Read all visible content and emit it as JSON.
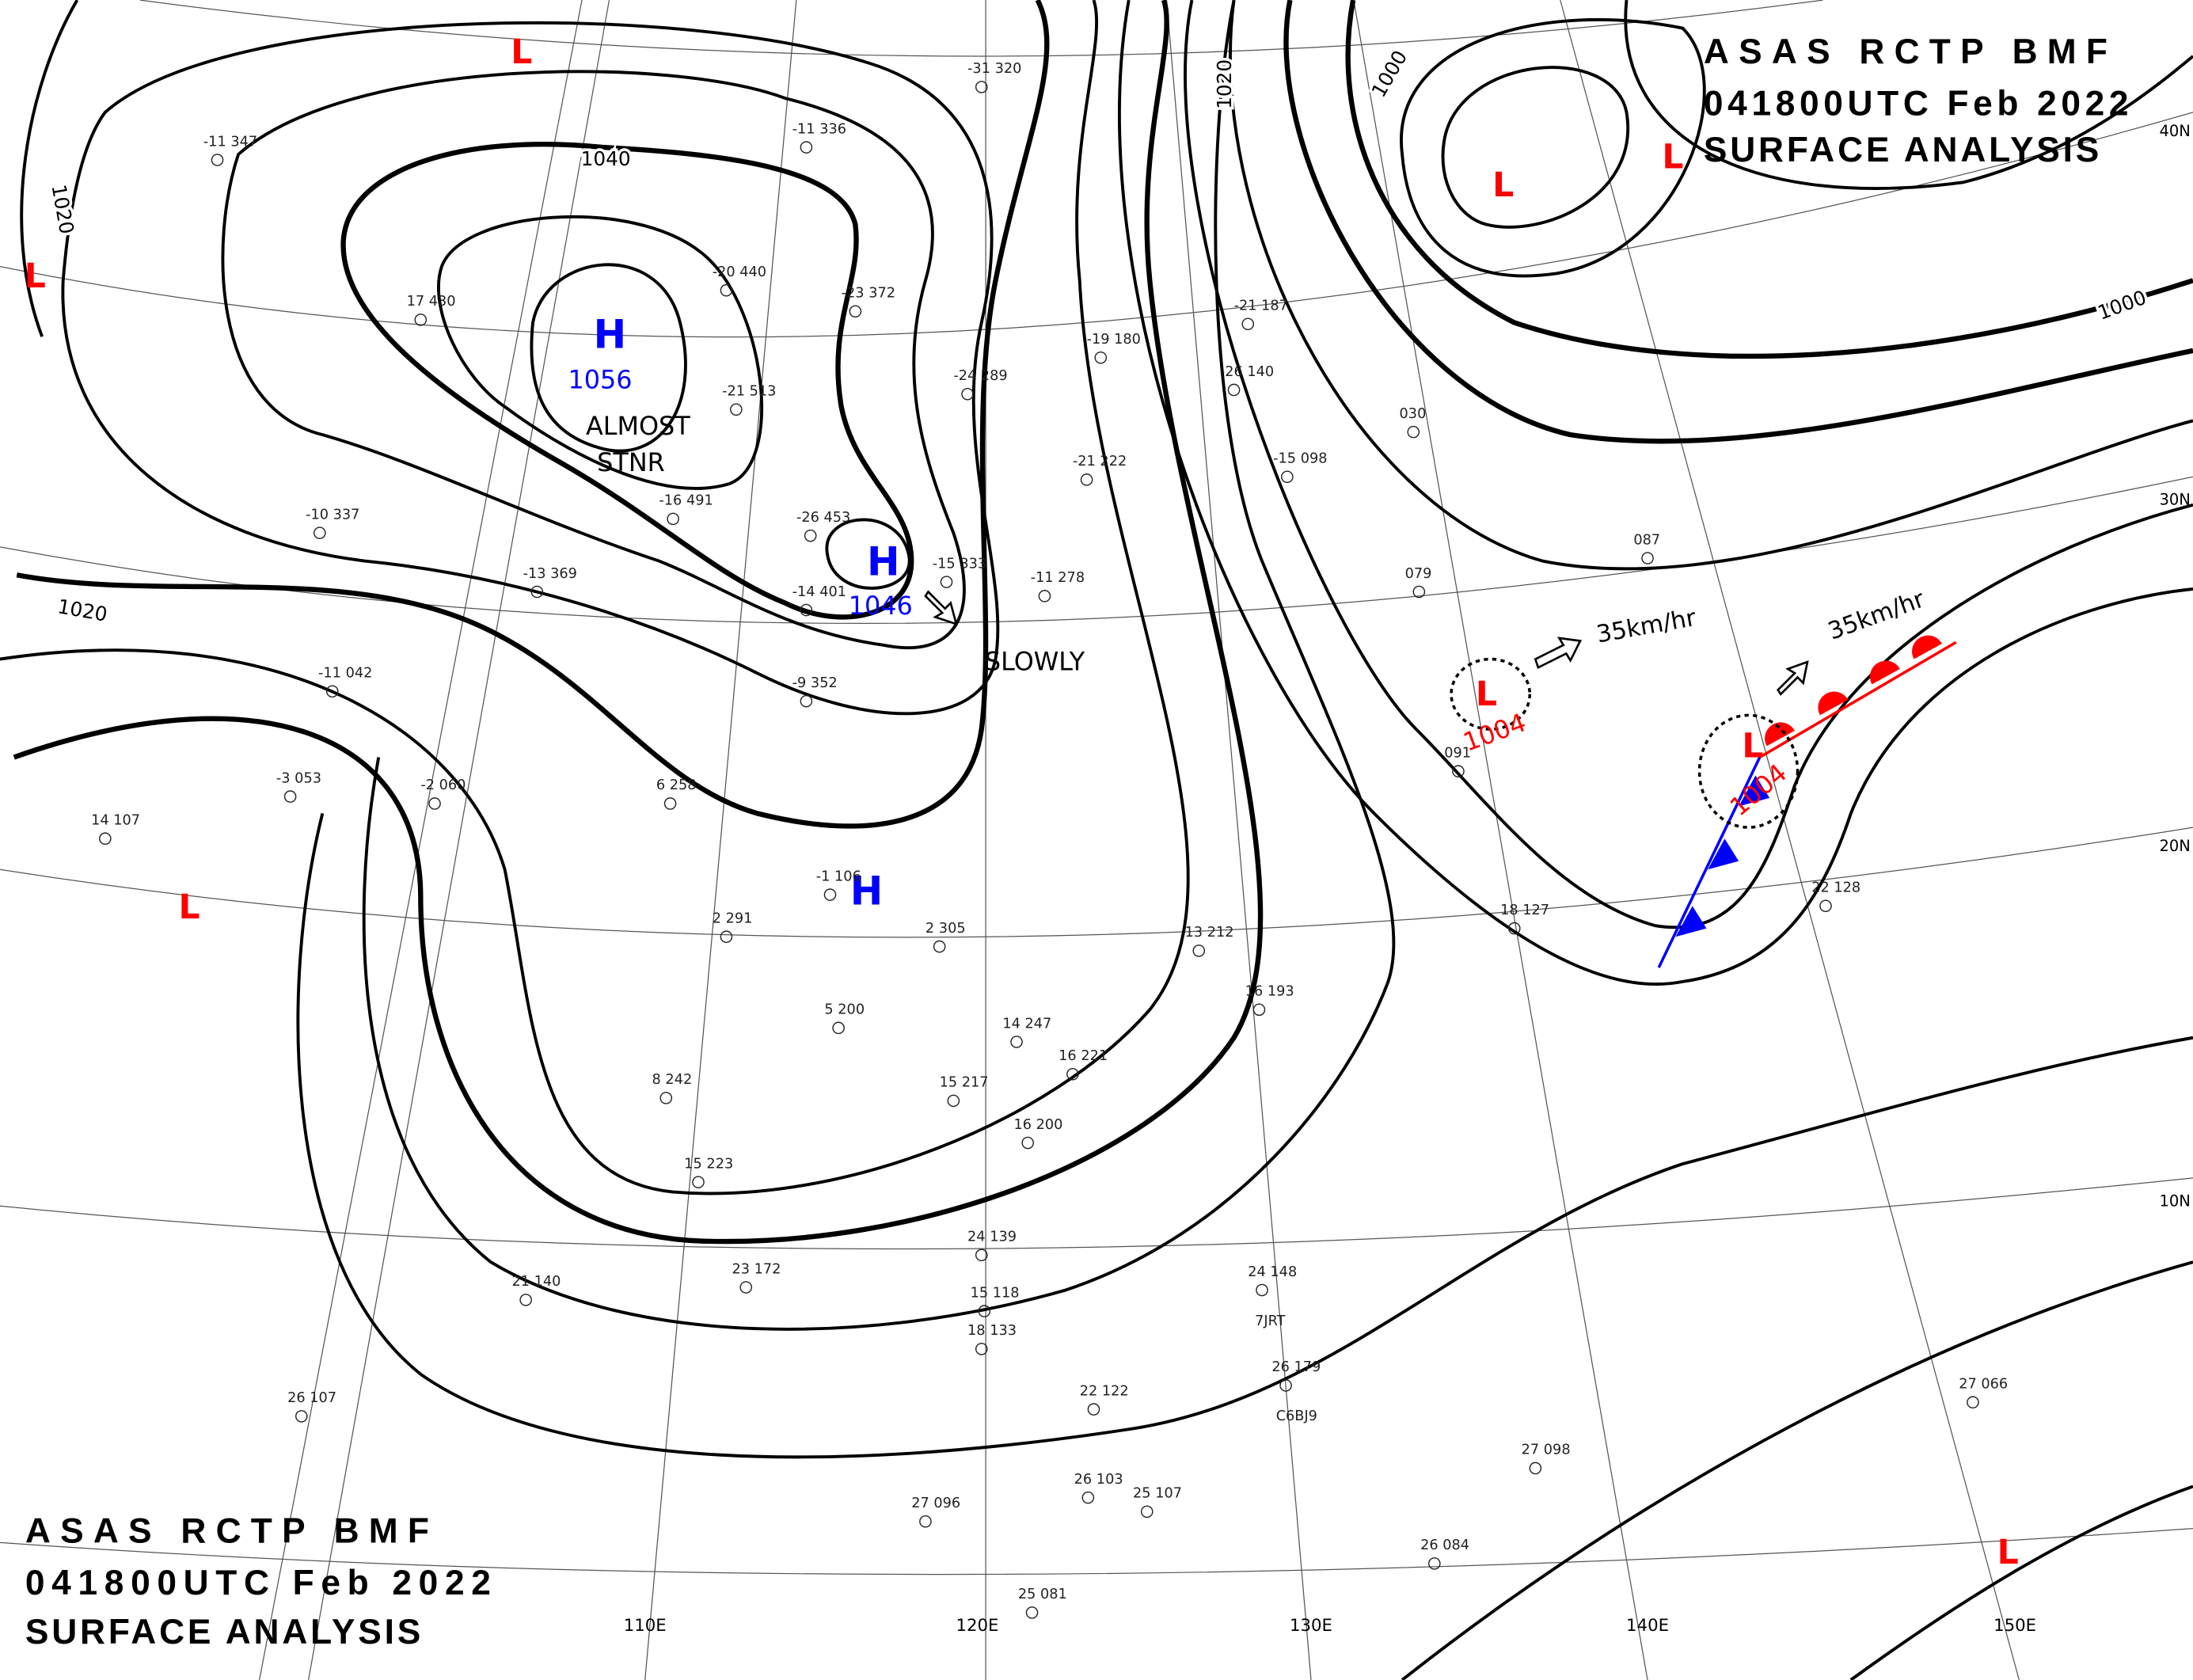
{
  "header_top": {
    "lines": [
      "ASAS RCTP BMF",
      "041800UTC Feb 2022",
      "SURFACE ANALYSIS"
    ]
  },
  "header_bottom": {
    "lines": [
      "ASAS RCTP BMF",
      "041800UTC Feb 2022",
      "SURFACE ANALYSIS"
    ]
  },
  "isobar_labels": [
    "1040",
    "1020",
    "1020",
    "1020",
    "1000",
    "1000"
  ],
  "highs": [
    {
      "symbol": "H",
      "pressure": "1056"
    },
    {
      "symbol": "H",
      "pressure": "1046"
    },
    {
      "symbol": "H"
    }
  ],
  "lows": [
    {
      "symbol": "L"
    },
    {
      "symbol": "L"
    },
    {
      "symbol": "L"
    },
    {
      "symbol": "L"
    },
    {
      "symbol": "L"
    },
    {
      "symbol": "L",
      "pressure": "1004"
    },
    {
      "symbol": "L",
      "pressure": "1004"
    },
    {
      "symbol": "L"
    }
  ],
  "annotations": [
    "ALMOST",
    "STNR",
    "SLOWLY",
    "35km/hr",
    "35km/hr"
  ],
  "latitudes": [
    "40N",
    "30N",
    "20N",
    "10N"
  ],
  "longitudes": [
    "110E",
    "120E",
    "130E",
    "140E",
    "150E"
  ],
  "stations": [
    "-31 320",
    "-11 336",
    "-11 347",
    "-20 440",
    "-23 372",
    "17 430",
    "-21 513",
    "-24 289",
    "-19 180",
    "-21 187",
    "-26 140",
    "-21 222",
    "-15 098",
    "-16 491",
    "-10 337",
    "-13 369",
    "-26 453",
    "-14 401",
    "-15 333",
    "-11 278",
    "-11 042",
    "-9 352",
    "-2 060",
    "-3 053",
    "14 107",
    "6 258",
    "2 291",
    "-1 106",
    "2 305",
    "5 200",
    "8 242",
    "15 223",
    "14 247",
    "16 221",
    "15 217",
    "16 200",
    "13 212",
    "16 193",
    "23 172",
    "21 140",
    "26 107",
    "24 139",
    "15 118",
    "18 133",
    "24 148",
    "26 179",
    "22 122",
    "27 096",
    "26 103",
    "25 107",
    "25 081",
    "27 098",
    "26 084",
    "27 066",
    "22 128",
    "18 127",
    "087",
    "079",
    "030",
    "091",
    "7JRT",
    "C6BJ9"
  ]
}
